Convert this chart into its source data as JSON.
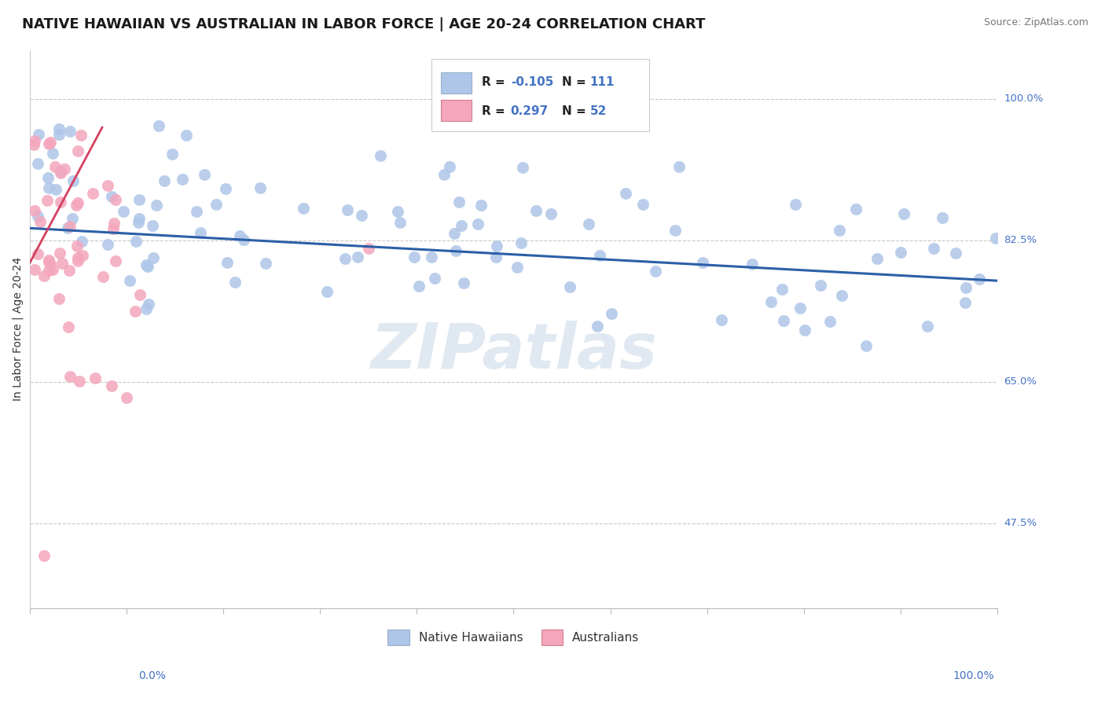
{
  "title": "NATIVE HAWAIIAN VS AUSTRALIAN IN LABOR FORCE | AGE 20-24 CORRELATION CHART",
  "source": "Source: ZipAtlas.com",
  "ylabel": "In Labor Force | Age 20-24",
  "watermark": "ZIPatlas",
  "blue_color": "#aec6e8",
  "pink_color": "#f4a6bc",
  "blue_line_color": "#2b5fa8",
  "pink_line_color": "#d44060",
  "axis_label_color": "#4472c4",
  "ytick_labels": [
    "100.0%",
    "82.5%",
    "65.0%",
    "47.5%"
  ],
  "ytick_values": [
    1.0,
    0.825,
    0.65,
    0.475
  ],
  "hline_values": [
    1.0,
    0.825,
    0.65,
    0.475
  ],
  "blue_line_x": [
    0.0,
    1.0
  ],
  "blue_line_y": [
    0.84,
    0.775
  ],
  "pink_line_x": [
    0.0,
    0.075
  ],
  "pink_line_y": [
    0.797,
    0.965
  ],
  "xlim": [
    0.0,
    1.0
  ],
  "ylim": [
    0.37,
    1.06
  ],
  "legend_blue_text_R": "R = ",
  "legend_blue_R_val": "-0.105",
  "legend_blue_N": "N = 111",
  "legend_pink_text_R": "R = ",
  "legend_pink_R_val": "0.297",
  "legend_pink_N": "N = 52"
}
